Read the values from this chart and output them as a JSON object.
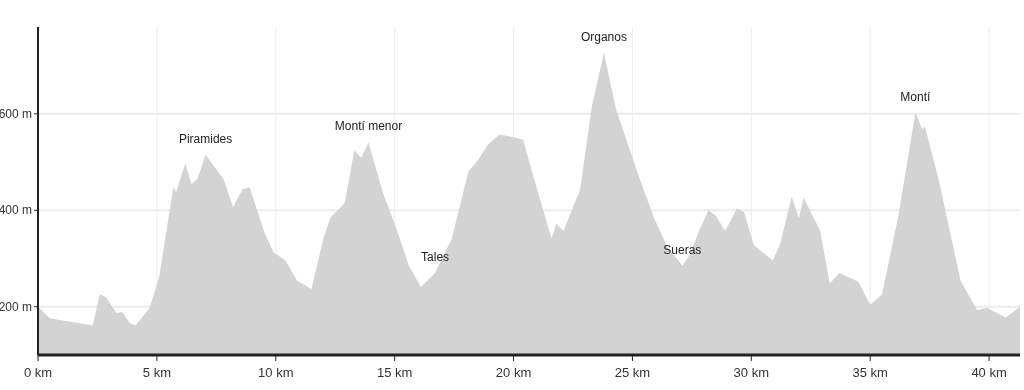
{
  "chart_data": {
    "type": "area",
    "xlim": [
      0,
      41.3
    ],
    "ylim": [
      100,
      780
    ],
    "xticks": [
      {
        "value": 0,
        "label": "0 km"
      },
      {
        "value": 5,
        "label": "5 km"
      },
      {
        "value": 10,
        "label": "10 km"
      },
      {
        "value": 15,
        "label": "15 km"
      },
      {
        "value": 20,
        "label": "20 km"
      },
      {
        "value": 25,
        "label": "25 km"
      },
      {
        "value": 30,
        "label": "30 km"
      },
      {
        "value": 35,
        "label": "35 km"
      },
      {
        "value": 40,
        "label": "40 km"
      }
    ],
    "yticks": [
      {
        "value": 200,
        "label": "200 m"
      },
      {
        "value": 400,
        "label": "400 m"
      },
      {
        "value": 600,
        "label": "600 m"
      }
    ],
    "grid": true,
    "series": [
      {
        "color": "#d3d3d3",
        "x": [
          0,
          0.5,
          2.3,
          2.6,
          2.85,
          3.3,
          3.55,
          3.85,
          4.1,
          4.7,
          5.1,
          5.4,
          5.7,
          5.8,
          6.2,
          6.45,
          6.7,
          7.05,
          7.3,
          7.8,
          8.2,
          8.6,
          8.9,
          9.5,
          9.9,
          10.4,
          10.9,
          11.5,
          12.0,
          12.3,
          12.9,
          13.3,
          13.6,
          13.9,
          14.5,
          15.0,
          15.6,
          16.1,
          16.7,
          17.4,
          18.1,
          18.5,
          18.9,
          19.4,
          19.95,
          20.4,
          20.9,
          21.6,
          21.8,
          22.1,
          22.8,
          23.3,
          23.8,
          24.3,
          25.2,
          25.9,
          26.5,
          26.9,
          27.1,
          27.4,
          27.8,
          28.2,
          28.5,
          28.9,
          29.4,
          29.7,
          30.1,
          30.9,
          31.2,
          31.7,
          32.0,
          32.2,
          32.9,
          33.3,
          33.7,
          34.5,
          35.0,
          35.5,
          36.2,
          36.9,
          37.2,
          37.3,
          37.9,
          38.8,
          39.5,
          39.9,
          40.7,
          41.3
        ],
        "values": [
          200,
          176,
          161,
          226,
          220,
          187,
          189,
          167,
          161,
          198,
          263,
          357,
          450,
          437,
          498,
          454,
          465,
          515,
          498,
          465,
          407,
          443,
          448,
          357,
          313,
          296,
          254,
          237,
          341,
          385,
          415,
          524,
          509,
          541,
          437,
          372,
          285,
          241,
          270,
          341,
          480,
          504,
          535,
          557,
          552,
          546,
          459,
          341,
          372,
          357,
          443,
          617,
          726,
          611,
          480,
          385,
          320,
          298,
          285,
          307,
          357,
          400,
          389,
          357,
          404,
          396,
          328,
          296,
          328,
          428,
          383,
          426,
          357,
          248,
          270,
          252,
          204,
          226,
          393,
          602,
          567,
          574,
          459,
          254,
          193,
          198,
          178,
          200
        ]
      }
    ],
    "annotations": [
      {
        "text": "Piramides",
        "x": 7.05,
        "y": 515
      },
      {
        "text": "Montí menor",
        "x": 13.9,
        "y": 541
      },
      {
        "text": "Tales",
        "x": 16.7,
        "y": 270
      },
      {
        "text": "Organos",
        "x": 23.8,
        "y": 726
      },
      {
        "text": "Sueras",
        "x": 27.1,
        "y": 285
      },
      {
        "text": "Montí",
        "x": 36.9,
        "y": 602
      }
    ]
  }
}
